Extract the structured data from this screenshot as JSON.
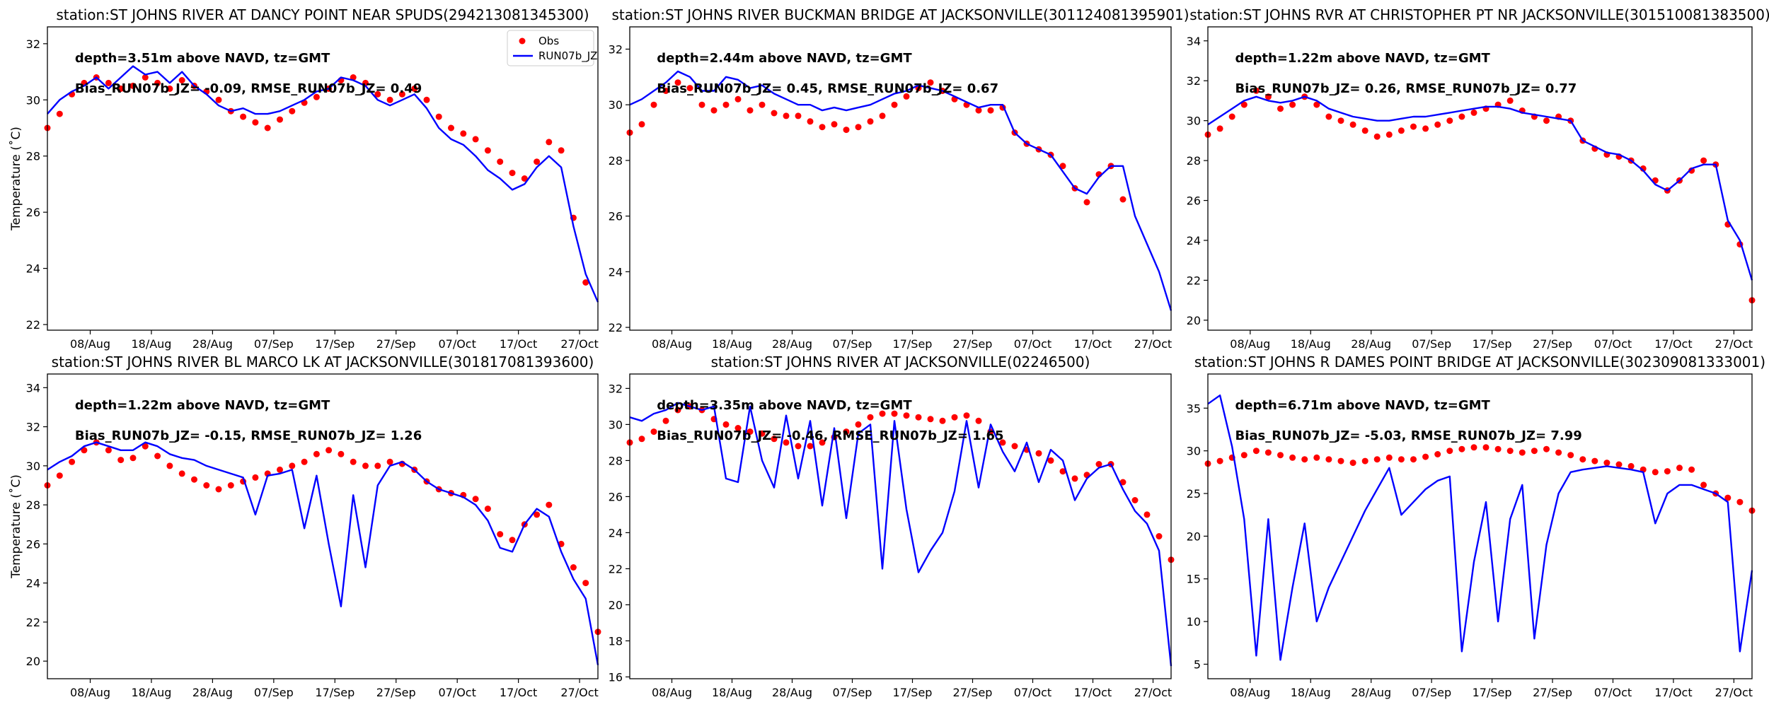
{
  "figure": {
    "ylabel": "Temperature ($^\\circ$C)",
    "ylabel_display": "Temperature (˚C)",
    "legend": {
      "obs": "Obs",
      "model": "RUN07b_JZ"
    },
    "colors": {
      "obs": "#ff0000",
      "model": "#0000ff"
    }
  },
  "chart_data": [
    {
      "type": "line",
      "title": "station:ST JOHNS RIVER AT DANCY POINT NEAR SPUDS(294213081345300)",
      "depth_text": "depth=3.51m above NAVD, tz=GMT",
      "stats_text": "Bias_RUN07b_JZ= -0.09, RMSE_RUN07b_JZ=  0.49",
      "ylim": [
        21.8,
        32.6
      ],
      "yticks": [
        22,
        24,
        26,
        28,
        30,
        32
      ],
      "show_ylabel": true,
      "legend": "top-right",
      "x_days_since_aug01": {
        "start": 0,
        "step": 2
      },
      "xlim_days": [
        0,
        90
      ],
      "xticks": {
        "days": [
          7,
          17,
          27,
          37,
          47,
          57,
          67,
          77,
          87
        ],
        "labels": [
          "08/Aug",
          "18/Aug",
          "28/Aug",
          "07/Sep",
          "17/Sep",
          "27/Sep",
          "07/Oct",
          "17/Oct",
          "27/Oct"
        ]
      },
      "series": [
        {
          "name": "Obs",
          "values": [
            29.0,
            29.5,
            30.2,
            30.6,
            30.8,
            30.6,
            30.4,
            30.5,
            30.8,
            30.6,
            30.4,
            30.7,
            30.5,
            30.3,
            30.0,
            29.6,
            29.4,
            29.2,
            29.0,
            29.3,
            29.6,
            29.9,
            30.1,
            30.4,
            30.7,
            30.8,
            30.6,
            30.2,
            30.0,
            30.2,
            30.4,
            30.0,
            29.4,
            29.0,
            28.8,
            28.6,
            28.2,
            27.8,
            27.4,
            27.2,
            27.8,
            28.5,
            28.2,
            25.8,
            23.5,
            null
          ]
        },
        {
          "name": "RUN07b_JZ",
          "values": [
            29.5,
            30.0,
            30.3,
            30.5,
            30.8,
            30.4,
            30.8,
            31.2,
            30.9,
            31.0,
            30.6,
            31.0,
            30.5,
            30.2,
            29.8,
            29.6,
            29.7,
            29.5,
            29.5,
            29.6,
            29.8,
            30.0,
            30.3,
            30.4,
            30.8,
            30.7,
            30.5,
            30.0,
            29.8,
            30.0,
            30.2,
            29.7,
            29.0,
            28.6,
            28.4,
            28.0,
            27.5,
            27.2,
            26.8,
            27.0,
            27.6,
            28.0,
            27.6,
            25.5,
            23.8,
            22.8
          ]
        }
      ]
    },
    {
      "type": "line",
      "title": "station:ST JOHNS RIVER BUCKMAN BRIDGE AT JACKSONVILLE(301124081395901)",
      "depth_text": "depth=2.44m above NAVD, tz=GMT",
      "stats_text": "Bias_RUN07b_JZ=  0.45, RMSE_RUN07b_JZ=  0.67",
      "ylim": [
        21.9,
        32.8
      ],
      "yticks": [
        22,
        24,
        26,
        28,
        30,
        32
      ],
      "show_ylabel": false,
      "x_days_since_aug01": {
        "start": 0,
        "step": 2
      },
      "xlim_days": [
        0,
        90
      ],
      "xticks": {
        "days": [
          7,
          17,
          27,
          37,
          47,
          57,
          67,
          77,
          87
        ],
        "labels": [
          "08/Aug",
          "18/Aug",
          "28/Aug",
          "07/Sep",
          "17/Sep",
          "27/Sep",
          "07/Oct",
          "17/Oct",
          "27/Oct"
        ]
      },
      "series": [
        {
          "name": "Obs",
          "values": [
            29.0,
            29.3,
            30.0,
            30.5,
            30.8,
            30.6,
            30.0,
            29.8,
            30.0,
            30.2,
            29.8,
            30.0,
            29.7,
            29.6,
            29.6,
            29.4,
            29.2,
            29.3,
            29.1,
            29.2,
            29.4,
            29.6,
            30.0,
            30.3,
            30.6,
            30.8,
            30.5,
            30.2,
            30.0,
            29.8,
            29.8,
            29.9,
            29.0,
            28.6,
            28.4,
            28.2,
            27.8,
            27.0,
            26.5,
            27.5,
            27.8,
            26.6,
            null,
            null,
            null,
            null
          ]
        },
        {
          "name": "RUN07b_JZ",
          "values": [
            30.0,
            30.2,
            30.5,
            30.8,
            31.2,
            31.0,
            30.5,
            30.5,
            31.0,
            30.9,
            30.6,
            30.7,
            30.4,
            30.2,
            30.0,
            30.0,
            29.8,
            29.9,
            29.8,
            29.9,
            30.0,
            30.2,
            30.4,
            30.5,
            30.7,
            30.6,
            30.5,
            30.3,
            30.1,
            29.9,
            30.0,
            30.0,
            29.0,
            28.6,
            28.4,
            28.2,
            27.6,
            27.0,
            26.8,
            27.4,
            27.8,
            27.8,
            26.0,
            25.0,
            24.0,
            22.6
          ]
        }
      ]
    },
    {
      "type": "line",
      "title": "station:ST JOHNS RVR AT CHRISTOPHER PT NR JACKSONVILLE(301510081383500)",
      "depth_text": "depth=1.22m above NAVD, tz=GMT",
      "stats_text": "Bias_RUN07b_JZ=  0.26, RMSE_RUN07b_JZ=  0.77",
      "ylim": [
        19.5,
        34.7
      ],
      "yticks": [
        20,
        22,
        24,
        26,
        28,
        30,
        32,
        34
      ],
      "show_ylabel": false,
      "x_days_since_aug01": {
        "start": 0,
        "step": 2
      },
      "xlim_days": [
        0,
        90
      ],
      "xticks": {
        "days": [
          7,
          17,
          27,
          37,
          47,
          57,
          67,
          77,
          87
        ],
        "labels": [
          "08/Aug",
          "18/Aug",
          "28/Aug",
          "07/Sep",
          "17/Sep",
          "27/Sep",
          "07/Oct",
          "17/Oct",
          "27/Oct"
        ]
      },
      "series": [
        {
          "name": "Obs",
          "values": [
            29.3,
            29.6,
            30.2,
            30.8,
            31.5,
            31.2,
            30.6,
            30.8,
            31.2,
            30.8,
            30.2,
            30.0,
            29.8,
            29.5,
            29.2,
            29.3,
            29.5,
            29.7,
            29.6,
            29.8,
            30.0,
            30.2,
            30.4,
            30.6,
            30.8,
            31.0,
            30.5,
            30.2,
            30.0,
            30.2,
            30.0,
            29.0,
            28.6,
            28.3,
            28.2,
            28.0,
            27.6,
            27.0,
            26.5,
            27.0,
            27.5,
            28.0,
            27.8,
            24.8,
            23.8,
            21.0
          ]
        },
        {
          "name": "RUN07b_JZ",
          "values": [
            29.8,
            30.2,
            30.6,
            31.0,
            31.2,
            31.0,
            30.9,
            31.0,
            31.2,
            31.0,
            30.6,
            30.4,
            30.2,
            30.1,
            30.0,
            30.0,
            30.1,
            30.2,
            30.2,
            30.3,
            30.4,
            30.5,
            30.6,
            30.7,
            30.7,
            30.6,
            30.4,
            30.3,
            30.2,
            30.1,
            30.0,
            29.0,
            28.7,
            28.4,
            28.3,
            28.0,
            27.5,
            26.8,
            26.5,
            27.0,
            27.6,
            27.8,
            27.8,
            25.0,
            24.0,
            22.0
          ]
        }
      ]
    },
    {
      "type": "line",
      "title": "station:ST JOHNS RIVER BL MARCO LK AT JACKSONVILLE(301817081393600)",
      "depth_text": "depth=1.22m above NAVD, tz=GMT",
      "stats_text": "Bias_RUN07b_JZ= -0.15, RMSE_RUN07b_JZ=  1.26",
      "ylim": [
        19.1,
        34.7
      ],
      "yticks": [
        20,
        22,
        24,
        26,
        28,
        30,
        32,
        34
      ],
      "show_ylabel": true,
      "x_days_since_aug01": {
        "start": 0,
        "step": 2
      },
      "xlim_days": [
        0,
        90
      ],
      "xticks": {
        "days": [
          7,
          17,
          27,
          37,
          47,
          57,
          67,
          77,
          87
        ],
        "labels": [
          "08/Aug",
          "18/Aug",
          "28/Aug",
          "07/Sep",
          "17/Sep",
          "27/Sep",
          "07/Oct",
          "17/Oct",
          "27/Oct"
        ]
      },
      "series": [
        {
          "name": "Obs",
          "values": [
            29.0,
            29.5,
            30.2,
            30.8,
            31.2,
            30.8,
            30.3,
            30.4,
            31.0,
            30.5,
            30.0,
            29.6,
            29.3,
            29.0,
            28.8,
            29.0,
            29.2,
            29.4,
            29.6,
            29.8,
            30.0,
            30.2,
            30.6,
            30.8,
            30.6,
            30.2,
            30.0,
            30.0,
            30.2,
            30.1,
            29.8,
            29.2,
            28.8,
            28.6,
            28.5,
            28.3,
            27.8,
            26.5,
            26.2,
            27.0,
            27.5,
            28.0,
            26.0,
            24.8,
            24.0,
            21.5
          ]
        },
        {
          "name": "RUN07b_JZ",
          "values": [
            29.8,
            30.2,
            30.5,
            31.0,
            31.2,
            31.0,
            30.8,
            30.8,
            31.2,
            31.0,
            30.6,
            30.4,
            30.3,
            30.0,
            29.8,
            29.6,
            29.4,
            27.5,
            29.5,
            29.6,
            29.8,
            26.8,
            29.5,
            26.0,
            22.8,
            28.5,
            24.8,
            29.0,
            30.0,
            30.2,
            29.8,
            29.2,
            28.8,
            28.6,
            28.4,
            28.0,
            27.2,
            25.8,
            25.6,
            27.0,
            27.8,
            27.4,
            25.6,
            24.2,
            23.2,
            19.8
          ]
        }
      ]
    },
    {
      "type": "line",
      "title": "station:ST JOHNS RIVER AT JACKSONVILLE(02246500)",
      "depth_text": "depth=3.35m above NAVD, tz=GMT",
      "stats_text": "Bias_RUN07b_JZ= -0.46, RMSE_RUN07b_JZ=  1.65",
      "ylim": [
        15.9,
        32.8
      ],
      "yticks": [
        16,
        18,
        20,
        22,
        24,
        26,
        28,
        30,
        32
      ],
      "show_ylabel": false,
      "x_days_since_aug01": {
        "start": 0,
        "step": 2
      },
      "xlim_days": [
        0,
        90
      ],
      "xticks": {
        "days": [
          7,
          17,
          27,
          37,
          47,
          57,
          67,
          77,
          87
        ],
        "labels": [
          "08/Aug",
          "18/Aug",
          "28/Aug",
          "07/Sep",
          "17/Sep",
          "27/Sep",
          "07/Oct",
          "17/Oct",
          "27/Oct"
        ]
      },
      "series": [
        {
          "name": "Obs",
          "values": [
            29.0,
            29.2,
            29.6,
            30.2,
            30.8,
            31.0,
            30.8,
            30.3,
            30.0,
            29.8,
            29.6,
            29.5,
            29.2,
            29.0,
            28.8,
            28.8,
            29.0,
            29.3,
            29.6,
            30.0,
            30.4,
            30.6,
            30.6,
            30.5,
            30.4,
            30.3,
            30.2,
            30.4,
            30.5,
            30.2,
            29.6,
            29.0,
            28.8,
            28.6,
            28.4,
            28.0,
            27.4,
            27.0,
            27.2,
            27.8,
            27.8,
            26.8,
            25.8,
            25.0,
            23.8,
            22.5
          ]
        },
        {
          "name": "RUN07b_JZ",
          "values": [
            30.4,
            30.2,
            30.6,
            30.8,
            31.2,
            31.0,
            30.8,
            31.0,
            27.0,
            26.8,
            31.0,
            28.0,
            26.5,
            30.5,
            27.0,
            30.2,
            25.5,
            29.8,
            24.8,
            29.5,
            30.0,
            22.0,
            30.2,
            25.3,
            21.8,
            23.0,
            24.0,
            26.3,
            30.2,
            26.5,
            30.0,
            28.5,
            27.4,
            29.0,
            26.8,
            28.6,
            28.0,
            25.8,
            27.0,
            27.6,
            27.8,
            26.4,
            25.2,
            24.5,
            23.0,
            16.6
          ]
        }
      ]
    },
    {
      "type": "line",
      "title": "station:ST JOHNS R DAMES POINT BRIDGE AT JACKSONVILLE(302309081333001)",
      "depth_text": "depth=6.71m above NAVD, tz=GMT",
      "stats_text": "Bias_RUN07b_JZ= -5.03, RMSE_RUN07b_JZ=  7.99",
      "ylim": [
        3.3,
        39.0
      ],
      "yticks": [
        5,
        10,
        15,
        20,
        25,
        30,
        35
      ],
      "show_ylabel": false,
      "x_days_since_aug01": {
        "start": 0,
        "step": 2
      },
      "xlim_days": [
        0,
        90
      ],
      "xticks": {
        "days": [
          7,
          17,
          27,
          37,
          47,
          57,
          67,
          77,
          87
        ],
        "labels": [
          "08/Aug",
          "18/Aug",
          "28/Aug",
          "07/Sep",
          "17/Sep",
          "27/Sep",
          "07/Oct",
          "17/Oct",
          "27/Oct"
        ]
      },
      "series": [
        {
          "name": "Obs",
          "values": [
            28.5,
            28.8,
            29.2,
            29.5,
            30.0,
            29.8,
            29.5,
            29.2,
            29.0,
            29.2,
            29.0,
            28.8,
            28.6,
            28.8,
            29.0,
            29.2,
            29.0,
            29.0,
            29.3,
            29.6,
            30.0,
            30.2,
            30.4,
            30.4,
            30.2,
            30.0,
            29.8,
            30.0,
            30.2,
            29.8,
            29.5,
            29.0,
            28.8,
            28.6,
            28.4,
            28.2,
            27.8,
            27.5,
            27.6,
            28.0,
            27.8,
            26.0,
            25.0,
            24.5,
            24.0,
            23.0
          ]
        },
        {
          "name": "RUN07b_JZ",
          "values": [
            35.5,
            36.5,
            30.5,
            22.0,
            6.0,
            22.0,
            5.5,
            14.0,
            21.5,
            10.0,
            14.0,
            17.0,
            20.0,
            23.0,
            25.5,
            28.0,
            22.5,
            24.0,
            25.5,
            26.5,
            27.0,
            6.5,
            17.0,
            24.0,
            10.0,
            22.0,
            26.0,
            8.0,
            19.0,
            25.0,
            27.5,
            27.8,
            28.0,
            28.2,
            28.0,
            27.8,
            27.5,
            21.5,
            25.0,
            26.0,
            26.0,
            25.5,
            25.0,
            24.0,
            6.5,
            16.0
          ]
        }
      ]
    }
  ]
}
